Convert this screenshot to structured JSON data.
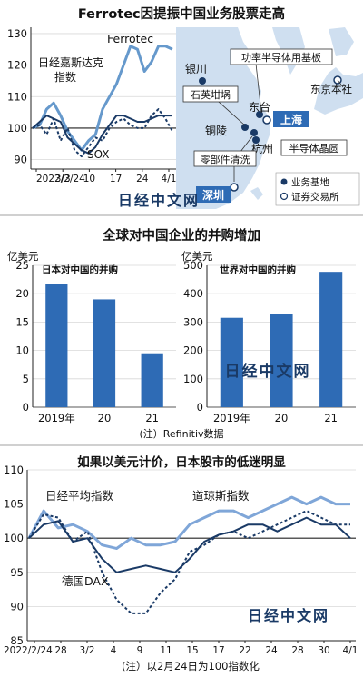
{
  "panel1": {
    "title": "Ferrotec因提振中国业务股票走高",
    "chart_data": {
      "type": "line",
      "ylim": [
        87,
        132
      ],
      "yticks": [
        90,
        100,
        110,
        120,
        130
      ],
      "xticks": [
        "2022/2/24",
        "3/3",
        "10",
        "17",
        "24",
        "4/1"
      ],
      "series": [
        {
          "name": "Ferrotec",
          "color": "#6699cc",
          "values": [
            100,
            101,
            106,
            108,
            104,
            99,
            96,
            93,
            96,
            98,
            106,
            110,
            114,
            120,
            126,
            125,
            118,
            121,
            126,
            126,
            125
          ]
        },
        {
          "name": "日经嘉斯达克指数",
          "color": "#1a3a66",
          "values": [
            100,
            102,
            104,
            103,
            102,
            97,
            95,
            93,
            92,
            94,
            98,
            101,
            104,
            104,
            103,
            102,
            102,
            103,
            104,
            104,
            104
          ]
        },
        {
          "name": "SOX",
          "color": "#1a3a66",
          "values": [
            100,
            101,
            98,
            103,
            96,
            100,
            93,
            91,
            94,
            97,
            96,
            100,
            102,
            103,
            101,
            100,
            100,
            104,
            106,
            103,
            99
          ]
        }
      ]
    },
    "map": {
      "labels": {
        "yinchuan": "银川",
        "ningxia": "功率半导体用基板",
        "shiying": "石英坩埚",
        "dongtai": "东台",
        "shanghai": "上海",
        "tongling": "铜陵",
        "hangzhou": "杭州",
        "wafer": "半导体晶圆",
        "parts": "零部件清洗",
        "shenzhen": "深圳",
        "tokyo": "东京本社"
      },
      "legend": [
        "业务基地",
        "证券交易所"
      ]
    },
    "watermark": "日经中文网"
  },
  "panel2": {
    "title": "全球对中国企业的并购增加",
    "unit": "亿美元",
    "note": "(注）Refinitiv数据",
    "watermark": "日经中文网",
    "chart_data": [
      {
        "type": "bar",
        "title": "日本对中国的并购",
        "categories": [
          "2019年",
          "20",
          "21"
        ],
        "values": [
          21.7,
          19.0,
          9.5
        ],
        "ylim": [
          0,
          25
        ],
        "yticks": [
          0,
          5,
          10,
          15,
          20,
          25
        ],
        "color": "#2e6bb5"
      },
      {
        "type": "bar",
        "title": "世界对中国的并购",
        "categories": [
          "2019年",
          "20",
          "21"
        ],
        "values": [
          315,
          330,
          477
        ],
        "ylim": [
          0,
          500
        ],
        "yticks": [
          0,
          100,
          200,
          300,
          400,
          500
        ],
        "color": "#2e6bb5"
      }
    ]
  },
  "panel3": {
    "title": "如果以美元计价，日本股市的低迷明显",
    "note": "(注）以2月24日为100指数化",
    "watermark": "日经中文网",
    "chart_data": {
      "type": "line",
      "ylim": [
        85,
        110
      ],
      "yticks": [
        85,
        90,
        95,
        100,
        105,
        110
      ],
      "xticks": [
        "2022/2/24",
        "28",
        "3/2",
        "4",
        "9",
        "11",
        "15",
        "17",
        "22",
        "24",
        "28",
        "30",
        "4/1"
      ],
      "series": [
        {
          "name": "道琼斯指数",
          "color": "#7fa6d8",
          "values": [
            100,
            104,
            101.5,
            102,
            101,
            99,
            98.5,
            100,
            99,
            99,
            99.5,
            102,
            103,
            104,
            104,
            103,
            104,
            105,
            106,
            105,
            106,
            105,
            105
          ]
        },
        {
          "name": "日经平均指数",
          "color": "#1a3a66",
          "values": [
            100,
            102,
            102.5,
            99.5,
            100,
            97,
            95,
            95.5,
            96,
            95.5,
            95,
            97,
            99.5,
            100.5,
            101,
            102,
            102,
            101,
            102,
            103,
            102,
            102,
            100
          ]
        },
        {
          "name": "德国DAX",
          "color": "#1a3a66",
          "values": [
            100,
            103.5,
            103,
            99.5,
            101,
            95,
            91,
            89,
            89,
            92,
            94,
            98,
            99,
            100.5,
            101,
            100,
            101,
            102,
            103,
            104,
            103,
            102,
            102
          ]
        }
      ]
    }
  }
}
